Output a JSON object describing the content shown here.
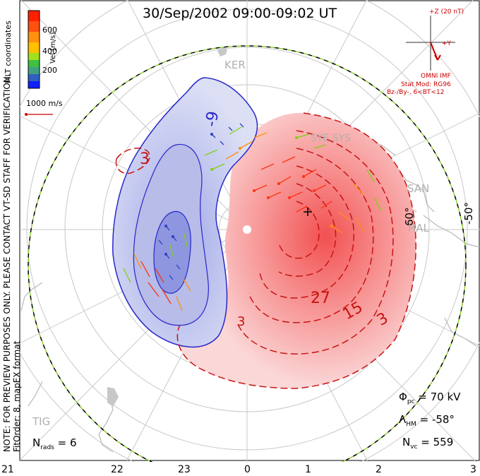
{
  "title": "30/Sep/2002 09:00-09:02 UT",
  "colorbar": {
    "title": "Vel [m/s]",
    "ticks": [
      "600",
      "400",
      "200"
    ],
    "colors": [
      "#ff2000",
      "#ff8000",
      "#ffc000",
      "#80e000",
      "#40a080",
      "#3060c0",
      "#1020ff"
    ]
  },
  "coordinate_label": "MLT coordinates",
  "velocity_scale": "1000 m/s",
  "imf": {
    "z_label": "+Z (20 nT)",
    "y_label": "+Y",
    "source": "OMNI IMF",
    "model_line1": "Stat Mod: RG96",
    "model_line2": "Bz-/By-, 6<BT<12"
  },
  "latitude_labels": [
    "60°",
    "-50°"
  ],
  "station_labels": [
    "KER",
    "SYE SYS",
    "SAN",
    "HAL",
    "TIG"
  ],
  "contour_labels": [
    "-9",
    "3",
    "27",
    "15",
    "3",
    "3"
  ],
  "stats": {
    "phi_pc": "= 70 kV",
    "lambda_hm": "= -58°",
    "n_vc": "= 559",
    "n_rads": "= 6"
  },
  "stat_symbols": {
    "phi": "Φ",
    "phi_sub": "pc",
    "lambda": "Λ",
    "lambda_sub": "HM",
    "nvc": "N",
    "nvc_sub": "vc",
    "nrads": "N",
    "nrads_sub": "rads"
  },
  "note_line1": "NOTE: FOR PREVIEW PURPOSES ONLY. PLEASE CONTACT VT-SD STAFF FOR VERIFICATION.",
  "note_line2": "FitOrder: 8, mapEX format",
  "mlt_ticks": [
    "21",
    "22",
    "23",
    "0",
    "1",
    "2",
    "3"
  ]
}
